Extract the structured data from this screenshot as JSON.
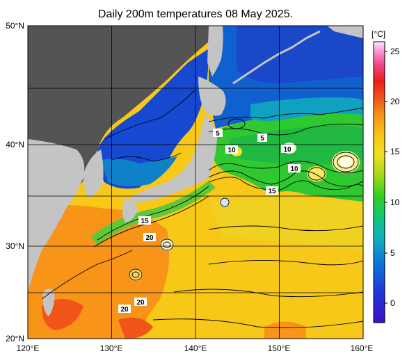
{
  "title": "Daily 200m temperatures 08 May 2025.",
  "map": {
    "lat_labels": [
      "50°N",
      "40°N",
      "30°N",
      "20°N"
    ],
    "lon_labels": [
      "120°E",
      "130°E",
      "140°E",
      "150°E",
      "160°E"
    ]
  },
  "colorbar": {
    "unit": "[°C]",
    "ticks": [
      "25",
      "20",
      "15",
      "10",
      "5",
      "0"
    ],
    "colors": [
      "#3a10c8",
      "#1e3cd8",
      "#0a7ad8",
      "#10b0c0",
      "#10c870",
      "#30d020",
      "#a0d818",
      "#f0e020",
      "#f8c818",
      "#f89418",
      "#f05418",
      "#e8201a",
      "#f04888",
      "#f8a0d8",
      "#ffe8ff"
    ]
  },
  "contour_labels": [
    "5",
    "5",
    "10",
    "10",
    "10",
    "15",
    "15",
    "20",
    "20",
    "20"
  ]
}
